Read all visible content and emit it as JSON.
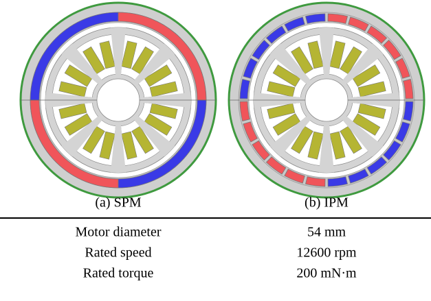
{
  "figures": [
    {
      "caption": "(a) SPM"
    },
    {
      "caption": "(b) IPM"
    }
  ],
  "table": {
    "rows": [
      [
        "Motor diameter",
        "54 mm"
      ],
      [
        "Rated speed",
        "12600 rpm"
      ],
      [
        "Rated torque",
        "200 mN·m"
      ]
    ]
  }
}
